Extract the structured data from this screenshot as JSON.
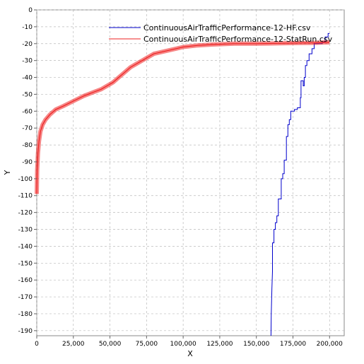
{
  "chart_data": {
    "type": "line",
    "title": "",
    "xlabel": "X",
    "ylabel": "Y",
    "xlim": [
      0,
      210000
    ],
    "ylim": [
      -193,
      0
    ],
    "x_ticks": [
      0,
      25000,
      50000,
      75000,
      100000,
      125000,
      150000,
      175000,
      200000
    ],
    "x_tick_labels": [
      "0",
      "25,000",
      "50,000",
      "75,000",
      "100,000",
      "125,000",
      "150,000",
      "175,000",
      "200,000"
    ],
    "y_ticks": [
      0,
      -10,
      -20,
      -30,
      -40,
      -50,
      -60,
      -70,
      -80,
      -90,
      -100,
      -110,
      -120,
      -130,
      -140,
      -150,
      -160,
      -170,
      -180,
      -190
    ],
    "y_tick_labels": [
      "0",
      "-10",
      "-20",
      "-30",
      "-40",
      "-50",
      "-60",
      "-70",
      "-80",
      "-90",
      "-100",
      "-110",
      "-120",
      "-130",
      "-140",
      "-150",
      "-160",
      "-170",
      "-180",
      "-190"
    ],
    "grid": true,
    "legend_position": "top-right",
    "series": [
      {
        "name": "ContinuousAirTrafficPerformance-12-HF.csv",
        "color": "#0000cc",
        "x": [
          160000,
          160200,
          160600,
          161000,
          161000,
          162000,
          162000,
          163000,
          163000,
          164000,
          164000,
          165000,
          165000,
          167000,
          167000,
          168000,
          168000,
          169000,
          169000,
          170500,
          170500,
          171500,
          171500,
          172500,
          172500,
          173500,
          173500,
          176000,
          176000,
          178000,
          178000,
          180000,
          180000,
          180500,
          180500,
          182000,
          182000,
          182700,
          182700,
          183500,
          183500,
          184500,
          184500,
          186000,
          186000,
          188000,
          188000,
          189500,
          189500,
          192000,
          192000,
          195000,
          195000,
          197000,
          197000,
          199000,
          199000,
          200000
        ],
        "y": [
          -193,
          -180,
          -165,
          -155,
          -138,
          -138,
          -130,
          -130,
          -126,
          -126,
          -122,
          -122,
          -112,
          -112,
          -100,
          -100,
          -97,
          -97,
          -89,
          -89,
          -75,
          -75,
          -68,
          -68,
          -65,
          -65,
          -60,
          -60,
          -59,
          -59,
          -58,
          -58,
          -52,
          -52,
          -42,
          -42,
          -45,
          -45,
          -40,
          -40,
          -33,
          -33,
          -30,
          -30,
          -26,
          -26,
          -23,
          -23,
          -20,
          -20,
          -20,
          -20,
          -19,
          -19,
          -16,
          -16,
          -14,
          -14
        ]
      },
      {
        "name": "ContinuousAirTrafficPerformance-12-StatRun.csv",
        "color": "#ee2222",
        "x": [
          0,
          300,
          800,
          1500,
          2500,
          4000,
          6000,
          9000,
          13000,
          18000,
          25000,
          32000,
          38000,
          44000,
          48000,
          52000,
          56000,
          60000,
          64000,
          68000,
          72000,
          76000,
          80000,
          85000,
          90000,
          95000,
          100000,
          110000,
          120000,
          135000,
          150000,
          165000,
          180000,
          190000,
          195000,
          200000
        ],
        "y": [
          -109,
          -95,
          -85,
          -78,
          -72,
          -68,
          -65,
          -62,
          -59,
          -57,
          -54,
          -51,
          -49,
          -47,
          -45,
          -43,
          -40,
          -37,
          -34,
          -32,
          -30,
          -28,
          -26,
          -25,
          -24,
          -23,
          -22,
          -21,
          -20.5,
          -20,
          -20,
          -19.8,
          -19.6,
          -19.5,
          -19.3,
          -19.2
        ]
      }
    ]
  }
}
